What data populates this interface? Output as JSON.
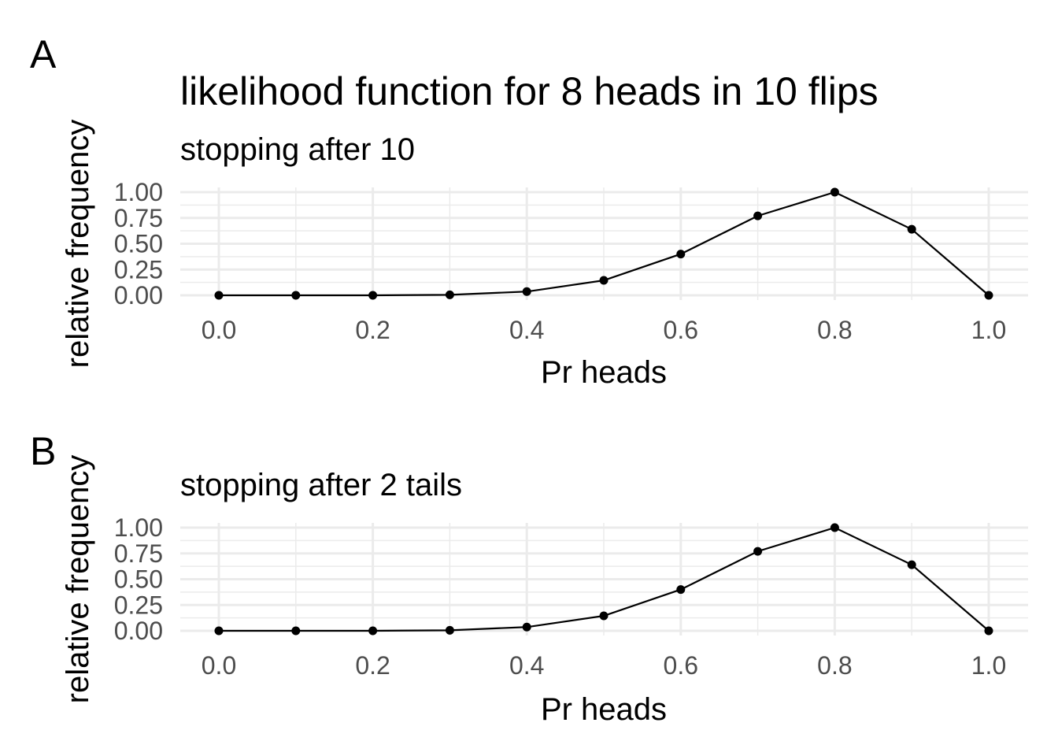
{
  "figure": {
    "title": "likelihood function for 8 heads in 10 flips"
  },
  "chart_data": [
    {
      "type": "line",
      "panel_tag": "A",
      "subtitle": "stopping after 10",
      "xlabel": "Pr heads",
      "ylabel": "relative frequency",
      "xlim": [
        0,
        1
      ],
      "ylim": [
        0,
        1
      ],
      "x_ticks": [
        "0.0",
        "0.2",
        "0.4",
        "0.6",
        "0.8",
        "1.0"
      ],
      "y_ticks": [
        "0.00",
        "0.25",
        "0.50",
        "0.75",
        "1.00"
      ],
      "grid": true,
      "x": [
        0.0,
        0.1,
        0.2,
        0.3,
        0.4,
        0.5,
        0.6,
        0.7,
        0.8,
        0.9,
        1.0
      ],
      "y": [
        0.0,
        0.0,
        0.0,
        0.005,
        0.036,
        0.145,
        0.4,
        0.77,
        1.0,
        0.64,
        0.0
      ],
      "markers": true,
      "line_color": "#000000",
      "grid_color": "#ebebeb"
    },
    {
      "type": "line",
      "panel_tag": "B",
      "subtitle": "stopping after 2 tails",
      "xlabel": "Pr heads",
      "ylabel": "relative frequency",
      "xlim": [
        0,
        1
      ],
      "ylim": [
        0,
        1
      ],
      "x_ticks": [
        "0.0",
        "0.2",
        "0.4",
        "0.6",
        "0.8",
        "1.0"
      ],
      "y_ticks": [
        "0.00",
        "0.25",
        "0.50",
        "0.75",
        "1.00"
      ],
      "grid": true,
      "x": [
        0.0,
        0.1,
        0.2,
        0.3,
        0.4,
        0.5,
        0.6,
        0.7,
        0.8,
        0.9,
        1.0
      ],
      "y": [
        0.0,
        0.0,
        0.0,
        0.005,
        0.036,
        0.145,
        0.4,
        0.77,
        1.0,
        0.64,
        0.0
      ],
      "markers": true,
      "line_color": "#000000",
      "grid_color": "#ebebeb"
    }
  ]
}
